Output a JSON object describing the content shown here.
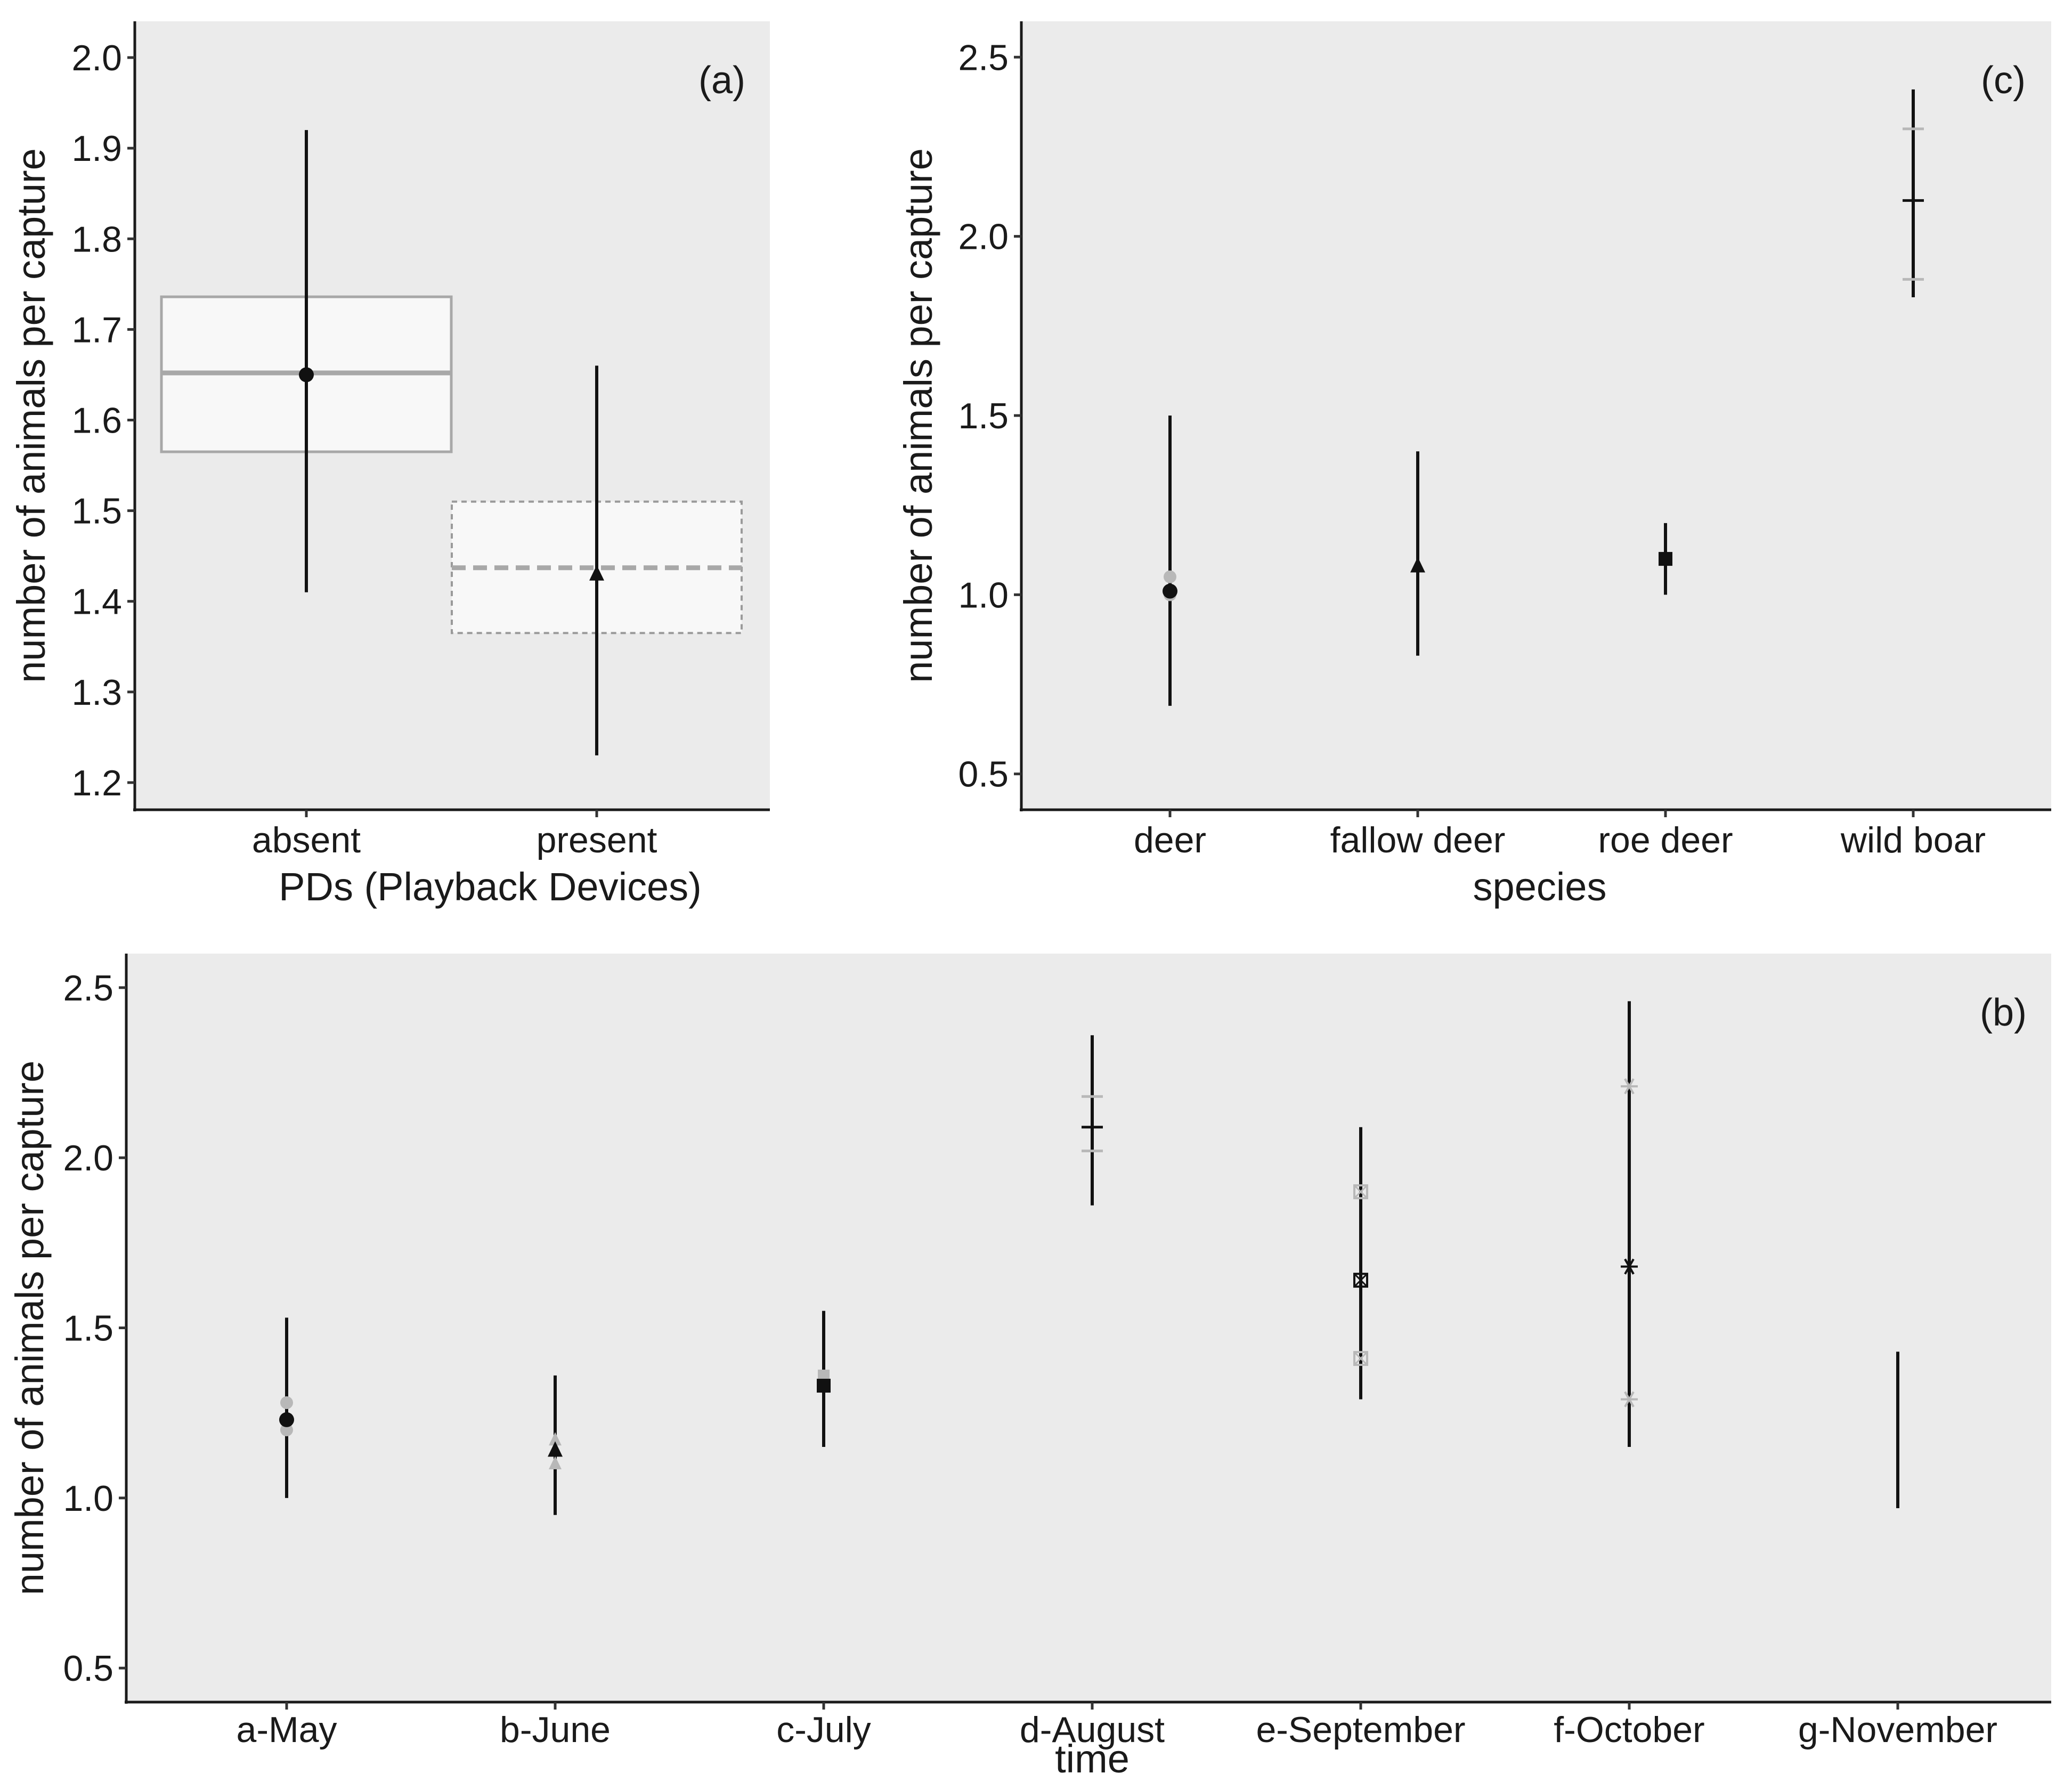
{
  "chart_data": [
    {
      "id": "a",
      "type": "point-errorbar-with-boxes",
      "panel_label": "(a)",
      "xlabel": "PDs (Playback Devices)",
      "ylabel": "number of animals per capture",
      "ylim": [
        1.17,
        2.04
      ],
      "yticks": [
        1.2,
        1.3,
        1.4,
        1.5,
        1.6,
        1.7,
        1.8,
        1.9,
        2.0
      ],
      "ytick_labels": [
        "1.2",
        "1.3",
        "1.4",
        "1.5",
        "1.6",
        "1.7",
        "1.8",
        "1.9",
        "2.0"
      ],
      "categories": [
        "absent",
        "present"
      ],
      "points": [
        {
          "category": "absent",
          "mean": 1.65,
          "lower": 1.41,
          "upper": 1.92,
          "shape": "circle"
        },
        {
          "category": "present",
          "mean": 1.43,
          "lower": 1.23,
          "upper": 1.66,
          "shape": "triangle"
        }
      ],
      "boxes": [
        {
          "category": "absent",
          "lower": 1.565,
          "middle": 1.652,
          "upper": 1.736,
          "line": "solid"
        },
        {
          "category": "present",
          "lower": 1.365,
          "middle": 1.437,
          "upper": 1.51,
          "line": "dashed"
        }
      ]
    },
    {
      "id": "c",
      "type": "point-errorbar",
      "panel_label": "(c)",
      "xlabel": "species",
      "ylabel": "number of animals per capture",
      "ylim": [
        0.4,
        2.6
      ],
      "yticks": [
        0.5,
        1.0,
        1.5,
        2.0,
        2.5
      ],
      "ytick_labels": [
        "0.5",
        "1.0",
        "1.5",
        "2.0",
        "2.5"
      ],
      "categories": [
        "deer",
        "fallow deer",
        "roe deer",
        "wild boar"
      ],
      "points": [
        {
          "category": "deer",
          "mean": 1.01,
          "lower": 0.69,
          "upper": 1.5,
          "shape": "circle",
          "ghosts": [
            1.05,
            1.0
          ]
        },
        {
          "category": "fallow deer",
          "mean": 1.08,
          "lower": 0.83,
          "upper": 1.4,
          "shape": "triangle",
          "ghosts": [
            1.08
          ]
        },
        {
          "category": "roe deer",
          "mean": 1.1,
          "lower": 1.0,
          "upper": 1.2,
          "shape": "square",
          "ghosts": [
            1.1
          ]
        },
        {
          "category": "wild boar",
          "mean": 2.1,
          "lower": 1.83,
          "upper": 2.41,
          "shape": "plus",
          "ghosts": [
            2.3,
            1.88
          ]
        }
      ]
    },
    {
      "id": "b",
      "type": "point-errorbar",
      "panel_label": "(b)",
      "xlabel": "time",
      "ylabel": "number of animals per capture",
      "ylim": [
        0.4,
        2.6
      ],
      "yticks": [
        0.5,
        1.0,
        1.5,
        2.0,
        2.5
      ],
      "ytick_labels": [
        "0.5",
        "1.0",
        "1.5",
        "2.0",
        "2.5"
      ],
      "categories": [
        "a-May",
        "b-June",
        "c-July",
        "d-August",
        "e-September",
        "f-October",
        "g-November"
      ],
      "points": [
        {
          "category": "a-May",
          "mean": 1.23,
          "lower": 1.0,
          "upper": 1.53,
          "shape": "circle",
          "ghosts": [
            1.28,
            1.2
          ]
        },
        {
          "category": "b-June",
          "mean": 1.14,
          "lower": 0.95,
          "upper": 1.36,
          "shape": "triangle",
          "ghosts": [
            1.17,
            1.1
          ]
        },
        {
          "category": "c-July",
          "mean": 1.33,
          "lower": 1.15,
          "upper": 1.55,
          "shape": "square",
          "ghosts": [
            1.36
          ]
        },
        {
          "category": "d-August",
          "mean": 2.09,
          "lower": 1.86,
          "upper": 2.36,
          "shape": "plus",
          "ghosts": [
            2.18,
            2.02
          ]
        },
        {
          "category": "e-September",
          "mean": 1.64,
          "lower": 1.29,
          "upper": 2.09,
          "shape": "square-x",
          "ghosts": [
            1.9,
            1.41
          ]
        },
        {
          "category": "f-October",
          "mean": 1.68,
          "lower": 1.15,
          "upper": 2.46,
          "shape": "asterisk",
          "ghosts": [
            2.21,
            1.29
          ]
        },
        {
          "category": "g-November",
          "mean": null,
          "lower": 0.97,
          "upper": 1.43,
          "shape": "none",
          "ghosts": []
        }
      ]
    }
  ]
}
